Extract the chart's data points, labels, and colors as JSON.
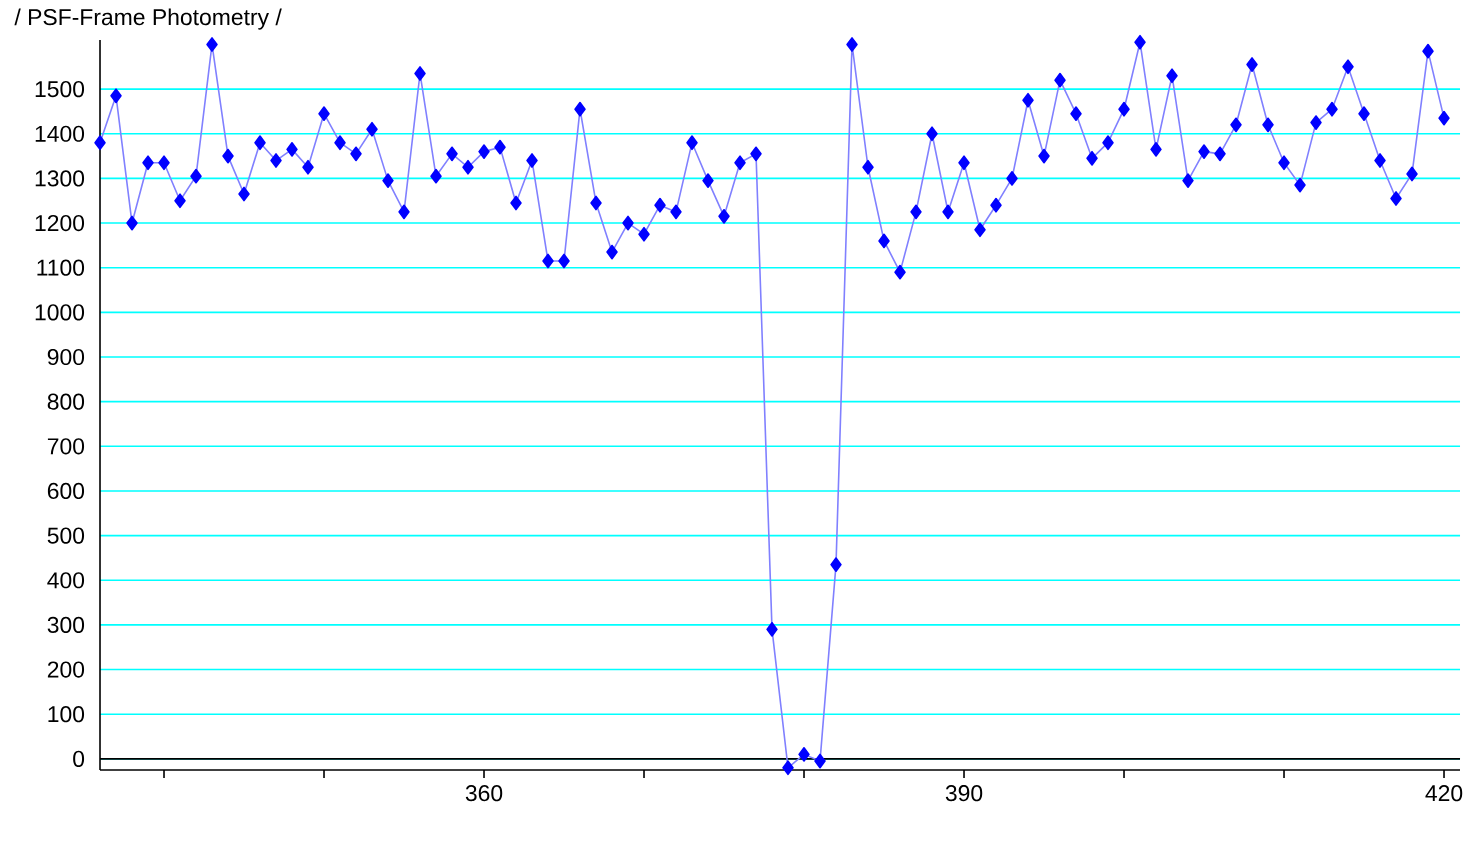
{
  "chart_data": {
    "type": "line",
    "title": "/ PSF-Frame Photometry /",
    "x": [
      336,
      337,
      338,
      339,
      340,
      341,
      342,
      343,
      344,
      345,
      346,
      347,
      348,
      349,
      350,
      351,
      352,
      353,
      354,
      355,
      356,
      357,
      358,
      359,
      360,
      361,
      362,
      363,
      364,
      365,
      366,
      367,
      368,
      369,
      370,
      371,
      372,
      373,
      374,
      375,
      376,
      377,
      378,
      379,
      380,
      381,
      382,
      383,
      384,
      385,
      386,
      387,
      388,
      389,
      390,
      391,
      392,
      393,
      394,
      395,
      396,
      397,
      398,
      399,
      400,
      401,
      402,
      403,
      404,
      405,
      406,
      407,
      408,
      409,
      410,
      411,
      412,
      413,
      414,
      415,
      416,
      417,
      418,
      419,
      420
    ],
    "values": [
      1380,
      1485,
      1200,
      1335,
      1335,
      1250,
      1305,
      1600,
      1350,
      1265,
      1380,
      1340,
      1365,
      1325,
      1445,
      1380,
      1355,
      1410,
      1295,
      1225,
      1535,
      1305,
      1355,
      1325,
      1360,
      1370,
      1245,
      1340,
      1115,
      1115,
      1455,
      1245,
      1135,
      1200,
      1175,
      1240,
      1225,
      1380,
      1295,
      1215,
      1335,
      1355,
      290,
      -20,
      10,
      -5,
      435,
      1600,
      1325,
      1160,
      1090,
      1225,
      1400,
      1225,
      1335,
      1185,
      1240,
      1300,
      1475,
      1350,
      1520,
      1445,
      1345,
      1380,
      1455,
      1605,
      1365,
      1530,
      1295,
      1360,
      1355,
      1420,
      1555,
      1420,
      1335,
      1285,
      1425,
      1455,
      1550,
      1445,
      1340,
      1255,
      1310,
      1585,
      1435
    ],
    "color": "#0000ff",
    "marker": "diamond",
    "line_style": "solid",
    "xlim": [
      336,
      421
    ],
    "ylim": [
      -25,
      1610
    ],
    "xticks": [
      {
        "value": 340,
        "label": null
      },
      {
        "value": 350,
        "label": null
      },
      360,
      {
        "value": 370,
        "label": null
      },
      {
        "value": 380,
        "label": null
      },
      390,
      {
        "value": 400,
        "label": null
      },
      {
        "value": 410,
        "label": null
      },
      420
    ],
    "yticks": [
      0,
      100,
      200,
      300,
      400,
      500,
      600,
      700,
      800,
      900,
      1000,
      1100,
      1200,
      1300,
      1400,
      1500
    ],
    "grid": "y",
    "ref_lines": [
      {
        "axis": "y",
        "value": 0,
        "color": "#000000"
      }
    ]
  }
}
